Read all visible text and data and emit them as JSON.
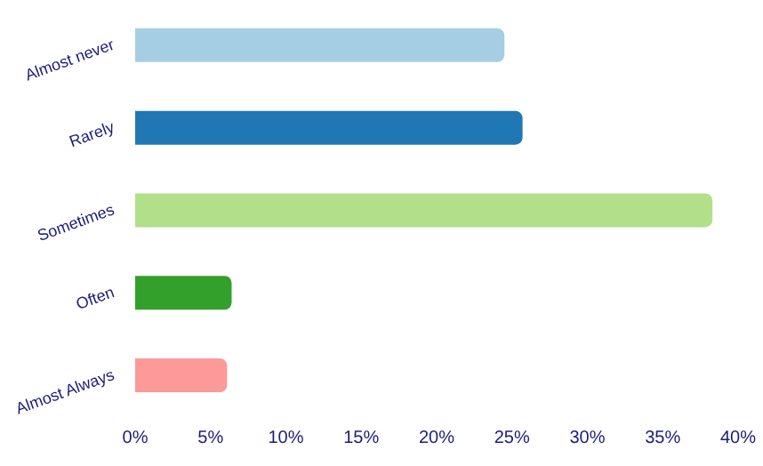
{
  "chart_data": {
    "type": "bar",
    "orientation": "horizontal",
    "categories": [
      "Almost never",
      "Rarely",
      "Sometimes",
      "Often",
      "Almost Always"
    ],
    "values": [
      24.5,
      25.7,
      38.3,
      6.4,
      6.1
    ],
    "colors": [
      "#a6cee3",
      "#1f78b4",
      "#b2df8a",
      "#33a02c",
      "#fb9a99"
    ],
    "xlim": [
      0,
      40
    ],
    "xticks": [
      {
        "value": 0,
        "label": "0%"
      },
      {
        "value": 5,
        "label": "5%"
      },
      {
        "value": 10,
        "label": "10%"
      },
      {
        "value": 15,
        "label": "15%"
      },
      {
        "value": 20,
        "label": "20%"
      },
      {
        "value": 25,
        "label": "25%"
      },
      {
        "value": 30,
        "label": "30%"
      },
      {
        "value": 35,
        "label": "35%"
      },
      {
        "value": 40,
        "label": "40%"
      }
    ],
    "grid": false,
    "legend": false
  }
}
